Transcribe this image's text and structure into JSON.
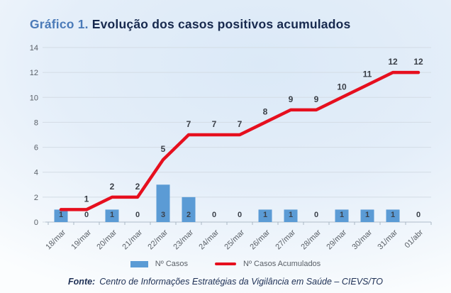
{
  "header": {
    "prefix": "Gráfico 1.",
    "title": "Evolução dos casos positivos acumulados"
  },
  "legend": {
    "bar_label": "Nº Casos",
    "line_label": "Nº Casos Acumulados"
  },
  "footer": {
    "label": "Fonte:",
    "text": "Centro de Informações Estratégias da Vigilância em Saúde – CIEVS/TO"
  },
  "colors": {
    "bar": "#5b9bd5",
    "line": "#e60f1e",
    "gridline": "#d3dce5",
    "axis_line": "#bcc8d4",
    "axis_tick": "#a9b7c4",
    "title_prefix": "#4a7ab8",
    "title_text": "#17294e",
    "axis_text": "#595f66",
    "data_label": "#3a4049"
  },
  "chart_data": {
    "type": "bar",
    "subtype": "bar+line combo",
    "title": "Gráfico 1. Evolução dos casos positivos acumulados",
    "xlabel": "",
    "ylabel": "",
    "categories": [
      "18/mar",
      "19/mar",
      "20/mar",
      "21/mar",
      "22/mar",
      "23/mar",
      "24/mar",
      "25/mar",
      "26/mar",
      "27/mar",
      "28/mar",
      "29/mar",
      "30/mar",
      "31/mar",
      "01/abr"
    ],
    "series": [
      {
        "name": "Nº Casos",
        "type": "bar",
        "color": "#5b9bd5",
        "values": [
          1,
          0,
          1,
          0,
          3,
          2,
          0,
          0,
          1,
          1,
          0,
          1,
          1,
          1,
          0
        ]
      },
      {
        "name": "Nº Casos Acumulados",
        "type": "line",
        "color": "#e60f1e",
        "values": [
          1,
          1,
          2,
          2,
          5,
          7,
          7,
          7,
          8,
          9,
          9,
          10,
          11,
          12,
          12
        ],
        "point_labels": [
          "",
          "1",
          "2",
          "2",
          "5",
          "7",
          "7",
          "7",
          "8",
          "9",
          "9",
          "10",
          "11",
          "12",
          "12"
        ]
      }
    ],
    "ylim": [
      0,
      14
    ],
    "yticks": [
      0,
      2,
      4,
      6,
      8,
      10,
      12,
      14
    ],
    "grid": true,
    "legend_position": "bottom"
  }
}
